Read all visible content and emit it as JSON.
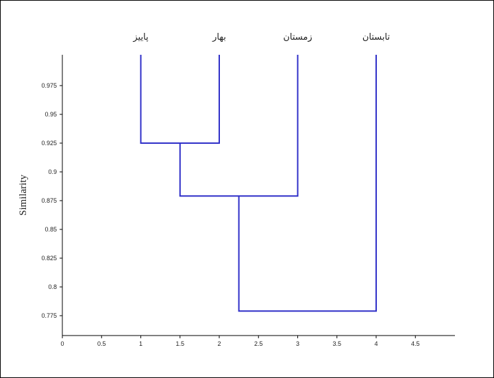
{
  "chart_data": {
    "type": "dendrogram",
    "title": "",
    "xlabel": "",
    "ylabel": "Similarity",
    "xlim": [
      0,
      5
    ],
    "ylim": [
      0.76,
      1.0
    ],
    "x_ticks": [
      0,
      0.5,
      1,
      1.5,
      2,
      2.5,
      3,
      3.5,
      4,
      4.5
    ],
    "x_tick_labels": [
      "0",
      "0.5",
      "1",
      "1.5",
      "2",
      "2.5",
      "3",
      "3.5",
      "4",
      "4.5"
    ],
    "y_ticks": [
      0.775,
      0.8,
      0.825,
      0.85,
      0.875,
      0.9,
      0.925,
      0.95,
      0.975
    ],
    "y_tick_labels": [
      "0.775",
      "0.8",
      "0.825",
      "0.85",
      "0.875",
      "0.9",
      "0.925",
      "0.95",
      "0.975"
    ],
    "leaves": [
      {
        "x": 1,
        "label": "پاییز"
      },
      {
        "x": 2,
        "label": "بهار"
      },
      {
        "x": 3,
        "label": "زمستان"
      },
      {
        "x": 4,
        "label": "تابستان"
      }
    ],
    "links": [
      {
        "left_x": 1,
        "right_x": 2,
        "height": 0.925,
        "merged_x": 1.5
      },
      {
        "left_x": 1.5,
        "right_x": 3,
        "height": 0.879,
        "merged_x": 2.25
      },
      {
        "left_x": 2.25,
        "right_x": 4,
        "height": 0.779,
        "merged_x": 3.125
      }
    ],
    "leaf_top": 1.0,
    "line_color": "#2f2fc8",
    "grid": false
  }
}
